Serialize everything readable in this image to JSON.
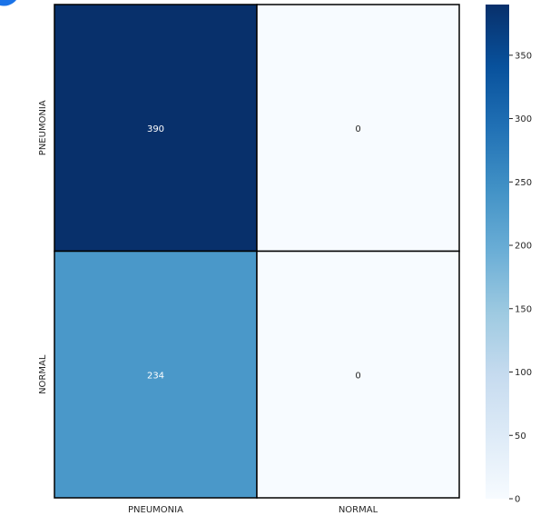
{
  "chart_data": {
    "type": "heatmap",
    "title": "",
    "xlabel": "",
    "ylabel": "",
    "x_categories": [
      "PNEUMONIA",
      "NORMAL"
    ],
    "y_categories": [
      "PNEUMONIA",
      "NORMAL"
    ],
    "values": [
      [
        390,
        0
      ],
      [
        234,
        0
      ]
    ],
    "annotations": [
      [
        "390",
        "0"
      ],
      [
        "234",
        "0"
      ]
    ],
    "colormap": "Blues",
    "vmin": 0,
    "vmax": 390,
    "colorbar_ticks": [
      0,
      50,
      100,
      150,
      200,
      250,
      300,
      350
    ],
    "colorbar_tick_labels": [
      "0",
      "50",
      "100",
      "150",
      "200",
      "250",
      "300",
      "350"
    ],
    "grid_line_color": "#000000",
    "colors": {
      "cell_390": "#08306b",
      "cell_234": "#4292c6",
      "cell_0": "#f7fbff"
    }
  }
}
